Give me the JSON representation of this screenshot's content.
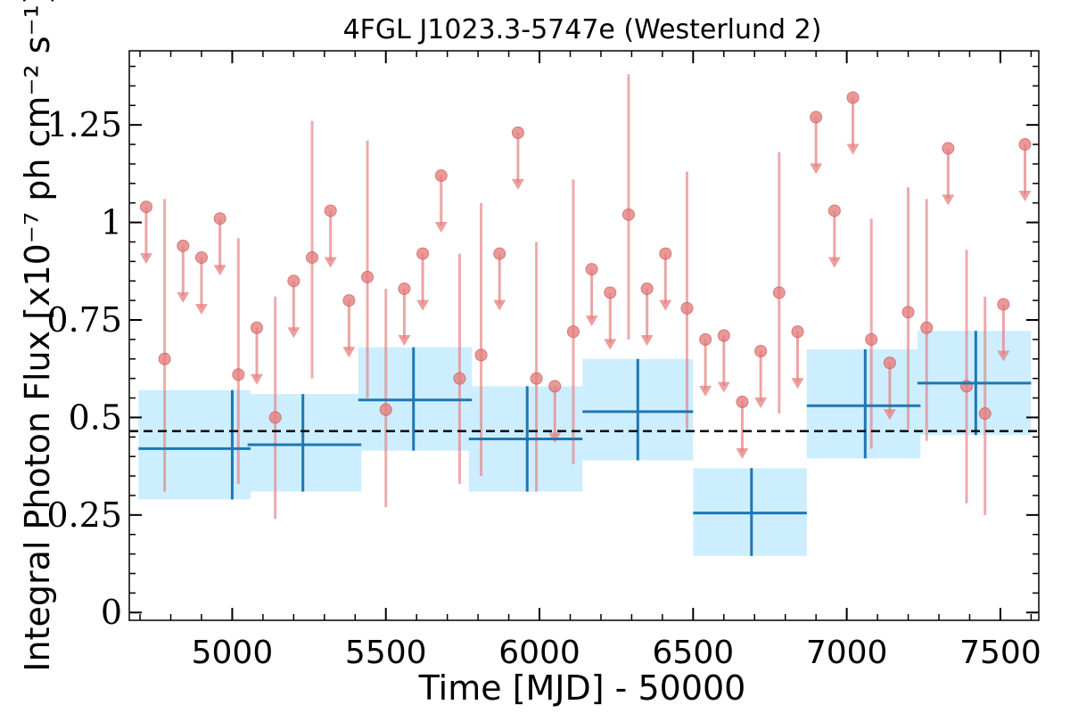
{
  "chart_data": {
    "type": "scatter",
    "title": "4FGL J1023.3-5747e (Westerlund 2)",
    "xlabel": "Time [MJD] - 50000",
    "ylabel": "Integral Photon Flux [x10⁻⁷ ph cm⁻² s⁻¹]",
    "xlim": [
      4665,
      7625
    ],
    "ylim": [
      -0.02,
      1.44
    ],
    "xticks": [
      5000,
      5500,
      6000,
      6500,
      7000,
      7500
    ],
    "xtick_labels": [
      "5000",
      "5500",
      "6000",
      "6500",
      "7000",
      "7500"
    ],
    "yticks": [
      0,
      0.25,
      0.5,
      0.75,
      1,
      1.25
    ],
    "ytick_labels": [
      "0",
      "0.25",
      "0.5",
      "0.75",
      "1",
      "1.25"
    ],
    "average_flux": 0.465,
    "colors": {
      "short_bin": "#e57f7f",
      "long_bin": "#1f77b4",
      "long_bin_fill": "#cdeeff",
      "average_line": "#000000"
    },
    "long_bins": [
      {
        "x": 5000,
        "xmin": 4695,
        "xmax": 5060,
        "y": 0.42,
        "ylo": 0.29,
        "yhi": 0.57
      },
      {
        "x": 5230,
        "xmin": 5050,
        "xmax": 5420,
        "y": 0.43,
        "ylo": 0.31,
        "yhi": 0.56
      },
      {
        "x": 5590,
        "xmin": 5410,
        "xmax": 5780,
        "y": 0.545,
        "ylo": 0.415,
        "yhi": 0.68
      },
      {
        "x": 5960,
        "xmin": 5770,
        "xmax": 6140,
        "y": 0.445,
        "ylo": 0.31,
        "yhi": 0.58
      },
      {
        "x": 6320,
        "xmin": 6140,
        "xmax": 6500,
        "y": 0.515,
        "ylo": 0.39,
        "yhi": 0.65
      },
      {
        "x": 6690,
        "xmin": 6500,
        "xmax": 6870,
        "y": 0.255,
        "ylo": 0.145,
        "yhi": 0.37
      },
      {
        "x": 7060,
        "xmin": 6870,
        "xmax": 7240,
        "y": 0.53,
        "ylo": 0.395,
        "yhi": 0.675
      },
      {
        "x": 7420,
        "xmin": 7230,
        "xmax": 7600,
        "y": 0.588,
        "ylo": 0.455,
        "yhi": 0.722
      }
    ],
    "short_bins": [
      {
        "x": 4720,
        "y": 1.04,
        "upper_limit": true
      },
      {
        "x": 4780,
        "y": 0.65,
        "ylo": 0.31,
        "yhi": 1.06
      },
      {
        "x": 4840,
        "y": 0.94,
        "upper_limit": true
      },
      {
        "x": 4900,
        "y": 0.91,
        "upper_limit": true
      },
      {
        "x": 4960,
        "y": 1.01,
        "upper_limit": true
      },
      {
        "x": 5020,
        "y": 0.61,
        "ylo": 0.33,
        "yhi": 0.96
      },
      {
        "x": 5080,
        "y": 0.73,
        "upper_limit": true
      },
      {
        "x": 5140,
        "y": 0.5,
        "ylo": 0.24,
        "yhi": 0.81
      },
      {
        "x": 5200,
        "y": 0.85,
        "upper_limit": true
      },
      {
        "x": 5260,
        "y": 0.91,
        "ylo": 0.6,
        "yhi": 1.26
      },
      {
        "x": 5320,
        "y": 1.03,
        "upper_limit": true
      },
      {
        "x": 5380,
        "y": 0.8,
        "upper_limit": true
      },
      {
        "x": 5440,
        "y": 0.86,
        "ylo": 0.55,
        "yhi": 1.21
      },
      {
        "x": 5500,
        "y": 0.52,
        "ylo": 0.27,
        "yhi": 0.83
      },
      {
        "x": 5560,
        "y": 0.83,
        "upper_limit": true
      },
      {
        "x": 5620,
        "y": 0.92,
        "upper_limit": true
      },
      {
        "x": 5680,
        "y": 1.12,
        "upper_limit": true
      },
      {
        "x": 5740,
        "y": 0.6,
        "ylo": 0.33,
        "yhi": 0.92
      },
      {
        "x": 5810,
        "y": 0.66,
        "ylo": 0.35,
        "yhi": 1.05
      },
      {
        "x": 5870,
        "y": 0.92,
        "upper_limit": true
      },
      {
        "x": 5930,
        "y": 1.23,
        "upper_limit": true
      },
      {
        "x": 5990,
        "y": 0.6,
        "ylo": 0.31,
        "yhi": 0.95
      },
      {
        "x": 6050,
        "y": 0.58,
        "upper_limit": true
      },
      {
        "x": 6110,
        "y": 0.72,
        "ylo": 0.38,
        "yhi": 1.11
      },
      {
        "x": 6170,
        "y": 0.88,
        "upper_limit": true
      },
      {
        "x": 6230,
        "y": 0.82,
        "upper_limit": true
      },
      {
        "x": 6290,
        "y": 1.02,
        "ylo": 0.7,
        "yhi": 1.38
      },
      {
        "x": 6350,
        "y": 0.83,
        "upper_limit": true
      },
      {
        "x": 6410,
        "y": 0.92,
        "upper_limit": true
      },
      {
        "x": 6480,
        "y": 0.78,
        "ylo": 0.47,
        "yhi": 1.13
      },
      {
        "x": 6540,
        "y": 0.7,
        "upper_limit": true
      },
      {
        "x": 6600,
        "y": 0.71,
        "upper_limit": true
      },
      {
        "x": 6660,
        "y": 0.54,
        "upper_limit": true
      },
      {
        "x": 6720,
        "y": 0.67,
        "upper_limit": true
      },
      {
        "x": 6780,
        "y": 0.82,
        "ylo": 0.51,
        "yhi": 1.18
      },
      {
        "x": 6840,
        "y": 0.72,
        "upper_limit": true
      },
      {
        "x": 6900,
        "y": 1.27,
        "upper_limit": true
      },
      {
        "x": 6960,
        "y": 1.03,
        "upper_limit": true
      },
      {
        "x": 7020,
        "y": 1.32,
        "upper_limit": true
      },
      {
        "x": 7080,
        "y": 0.7,
        "ylo": 0.42,
        "yhi": 1.01
      },
      {
        "x": 7140,
        "y": 0.64,
        "upper_limit": true
      },
      {
        "x": 7200,
        "y": 0.77,
        "ylo": 0.47,
        "yhi": 1.09
      },
      {
        "x": 7260,
        "y": 0.73,
        "ylo": 0.44,
        "yhi": 1.06
      },
      {
        "x": 7330,
        "y": 1.19,
        "upper_limit": true
      },
      {
        "x": 7390,
        "y": 0.58,
        "ylo": 0.28,
        "yhi": 0.93
      },
      {
        "x": 7450,
        "y": 0.51,
        "ylo": 0.25,
        "yhi": 0.81
      },
      {
        "x": 7510,
        "y": 0.79,
        "upper_limit": true
      },
      {
        "x": 7580,
        "y": 1.2,
        "upper_limit": true
      }
    ]
  }
}
